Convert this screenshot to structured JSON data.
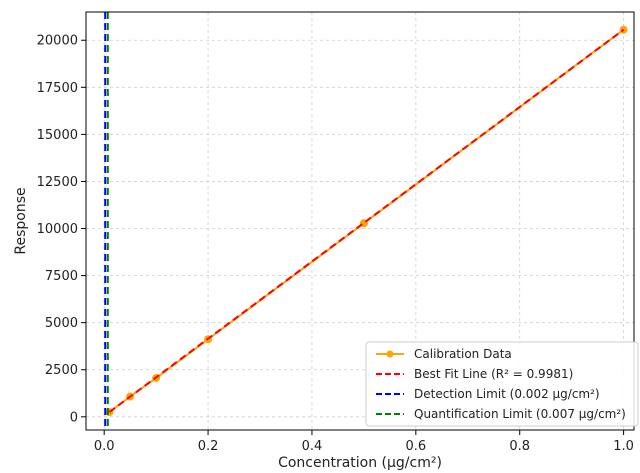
{
  "chart_data": {
    "type": "line",
    "xlabel": "Concentration (µg/cm²)",
    "ylabel": "Response",
    "xlim": [
      -0.035,
      1.02
    ],
    "ylim": [
      -700,
      21500
    ],
    "xticks": [
      0.0,
      0.2,
      0.4,
      0.6,
      0.8,
      1.0
    ],
    "xtick_labels": [
      "0.0",
      "0.2",
      "0.4",
      "0.6",
      "0.8",
      "1.0"
    ],
    "yticks": [
      0,
      2500,
      5000,
      7500,
      10000,
      12500,
      15000,
      17500,
      20000
    ],
    "ytick_labels": [
      "0",
      "2500",
      "5000",
      "7500",
      "10000",
      "12500",
      "15000",
      "17500",
      "20000"
    ],
    "grid": true,
    "legend_position": "bottom-right",
    "series": [
      {
        "name": "Calibration Data",
        "kind": "line-markers",
        "color": "#FFA500",
        "x": [
          0.01,
          0.05,
          0.1,
          0.2,
          0.5,
          1.0
        ],
        "y": [
          250,
          1080,
          2060,
          4120,
          10280,
          20560
        ]
      },
      {
        "name": "Best Fit Line (R² = 0.9981)",
        "kind": "dashed-line",
        "color": "#FF0000",
        "x": [
          0.01,
          1.0
        ],
        "y": [
          250,
          20560
        ]
      },
      {
        "name": "Detection Limit (0.002 µg/cm²)",
        "kind": "vline",
        "color": "#0000FF",
        "x": 0.002
      },
      {
        "name": "Quantification Limit (0.007 µg/cm²)",
        "kind": "vline",
        "color": "#008000",
        "x": 0.007
      }
    ]
  }
}
